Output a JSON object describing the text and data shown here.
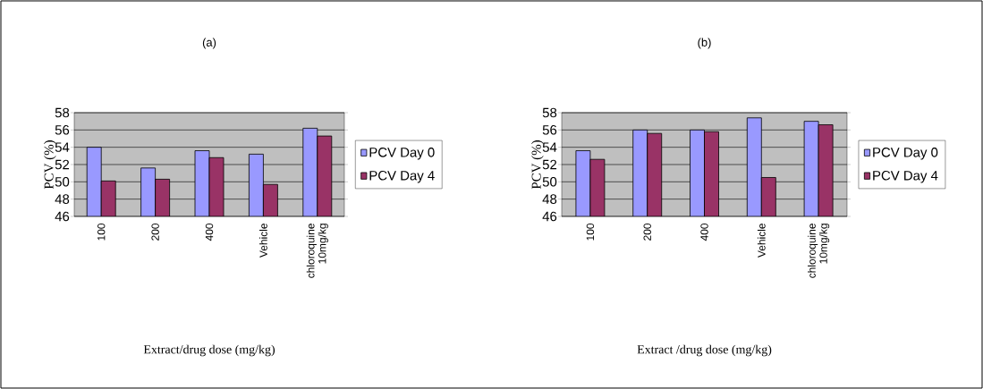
{
  "chart_data": [
    {
      "type": "bar",
      "title": "(a)",
      "xlabel": "Extract/drug dose (mg/kg)",
      "ylabel": "PCV (%)",
      "categories": [
        "100",
        "200",
        "400",
        "Vehicle",
        "chloroquine 10mg/kg"
      ],
      "series": [
        {
          "name": "PCV Day 0",
          "color": "#9999ff",
          "values": [
            54.0,
            51.6,
            53.6,
            53.2,
            56.2
          ]
        },
        {
          "name": "PCV Day 4",
          "color": "#993366",
          "values": [
            50.1,
            50.3,
            52.8,
            49.7,
            55.3
          ]
        }
      ],
      "ylim": [
        46,
        58
      ],
      "yticks": [
        46,
        48,
        50,
        52,
        54,
        56,
        58
      ],
      "grid": "y",
      "legend": "right"
    },
    {
      "type": "bar",
      "title": "(b)",
      "xlabel": "Extract /drug dose (mg/kg)",
      "ylabel": "PCV (%)",
      "categories": [
        "100",
        "200",
        "400",
        "Vehicle",
        "chloroquine 10mg/kg"
      ],
      "series": [
        {
          "name": "PCV Day 0",
          "color": "#9999ff",
          "values": [
            53.6,
            56.0,
            56.0,
            57.4,
            57.0
          ]
        },
        {
          "name": "PCV Day 4",
          "color": "#993366",
          "values": [
            52.6,
            55.6,
            55.8,
            50.5,
            56.6
          ]
        }
      ],
      "ylim": [
        46,
        58
      ],
      "yticks": [
        46,
        48,
        50,
        52,
        54,
        56,
        58
      ],
      "grid": "y",
      "legend": "right"
    }
  ]
}
